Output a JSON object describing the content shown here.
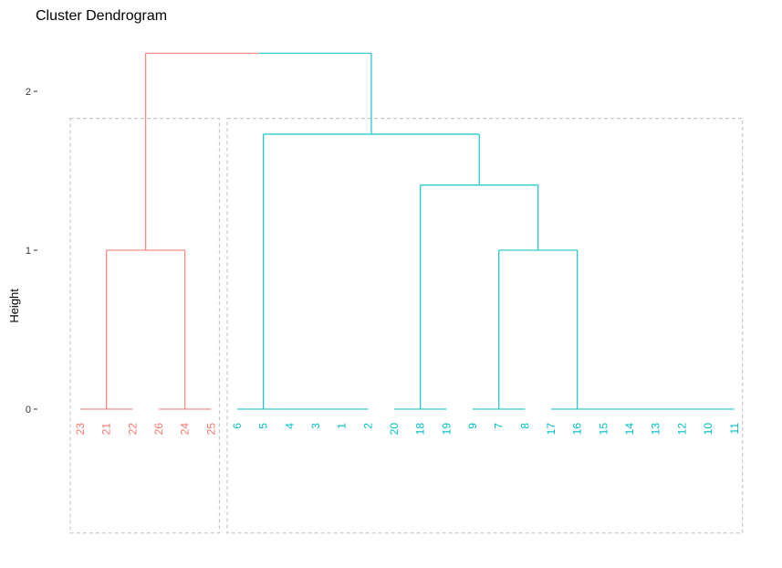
{
  "chart_data": {
    "type": "dendrogram",
    "title": "Cluster Dendrogram",
    "ylabel": "Height",
    "yticks": [
      0,
      1,
      2
    ],
    "ylim": [
      -0.78,
      2.3
    ],
    "colors": {
      "cluster1": "#F8766D",
      "cluster2": "#00BFC4"
    },
    "leaves": [
      {
        "label": "23",
        "cluster": 1
      },
      {
        "label": "21",
        "cluster": 1
      },
      {
        "label": "22",
        "cluster": 1
      },
      {
        "label": "26",
        "cluster": 1
      },
      {
        "label": "24",
        "cluster": 1
      },
      {
        "label": "25",
        "cluster": 1
      },
      {
        "label": "6",
        "cluster": 2
      },
      {
        "label": "5",
        "cluster": 2
      },
      {
        "label": "4",
        "cluster": 2
      },
      {
        "label": "3",
        "cluster": 2
      },
      {
        "label": "1",
        "cluster": 2
      },
      {
        "label": "2",
        "cluster": 2
      },
      {
        "label": "20",
        "cluster": 2
      },
      {
        "label": "18",
        "cluster": 2
      },
      {
        "label": "19",
        "cluster": 2
      },
      {
        "label": "9",
        "cluster": 2
      },
      {
        "label": "7",
        "cluster": 2
      },
      {
        "label": "8",
        "cluster": 2
      },
      {
        "label": "17",
        "cluster": 2
      },
      {
        "label": "16",
        "cluster": 2
      },
      {
        "label": "15",
        "cluster": 2
      },
      {
        "label": "14",
        "cluster": 2
      },
      {
        "label": "13",
        "cluster": 2
      },
      {
        "label": "12",
        "cluster": 2
      },
      {
        "label": "10",
        "cluster": 2
      },
      {
        "label": "11",
        "cluster": 2
      }
    ],
    "merges": [
      {
        "height": 0.0,
        "left": "23",
        "right": "21"
      },
      {
        "height": 0.0,
        "left": "21",
        "right": "22"
      },
      {
        "height": 0.0,
        "left": "26",
        "right": "24"
      },
      {
        "height": 0.0,
        "left": "24",
        "right": "25"
      },
      {
        "height": 1.0,
        "left": "23,21,22",
        "right": "26,24,25"
      },
      {
        "height": 0.0,
        "left": "6..2",
        "right": "6..2"
      },
      {
        "height": 0.0,
        "left": "20",
        "right": "18,19"
      },
      {
        "height": 0.0,
        "left": "9",
        "right": "7,8"
      },
      {
        "height": 0.0,
        "left": "17",
        "right": "16..11"
      },
      {
        "height": 1.0,
        "left": "9,7,8",
        "right": "17,16,15,14,13,12,10,11"
      },
      {
        "height": 1.41,
        "left": "20,18,19",
        "right": "9..11"
      },
      {
        "height": 1.73,
        "left": "6,5,4,3,1,2",
        "right": "20..11"
      },
      {
        "height": 2.24,
        "left": "23..25",
        "right": "6..11"
      }
    ],
    "clusters": [
      {
        "id": 1,
        "leaves": [
          "23",
          "21",
          "22",
          "26",
          "24",
          "25"
        ]
      },
      {
        "id": 2,
        "leaves": [
          "6",
          "5",
          "4",
          "3",
          "1",
          "2",
          "20",
          "18",
          "19",
          "9",
          "7",
          "8",
          "17",
          "16",
          "15",
          "14",
          "13",
          "12",
          "10",
          "11"
        ]
      }
    ]
  }
}
